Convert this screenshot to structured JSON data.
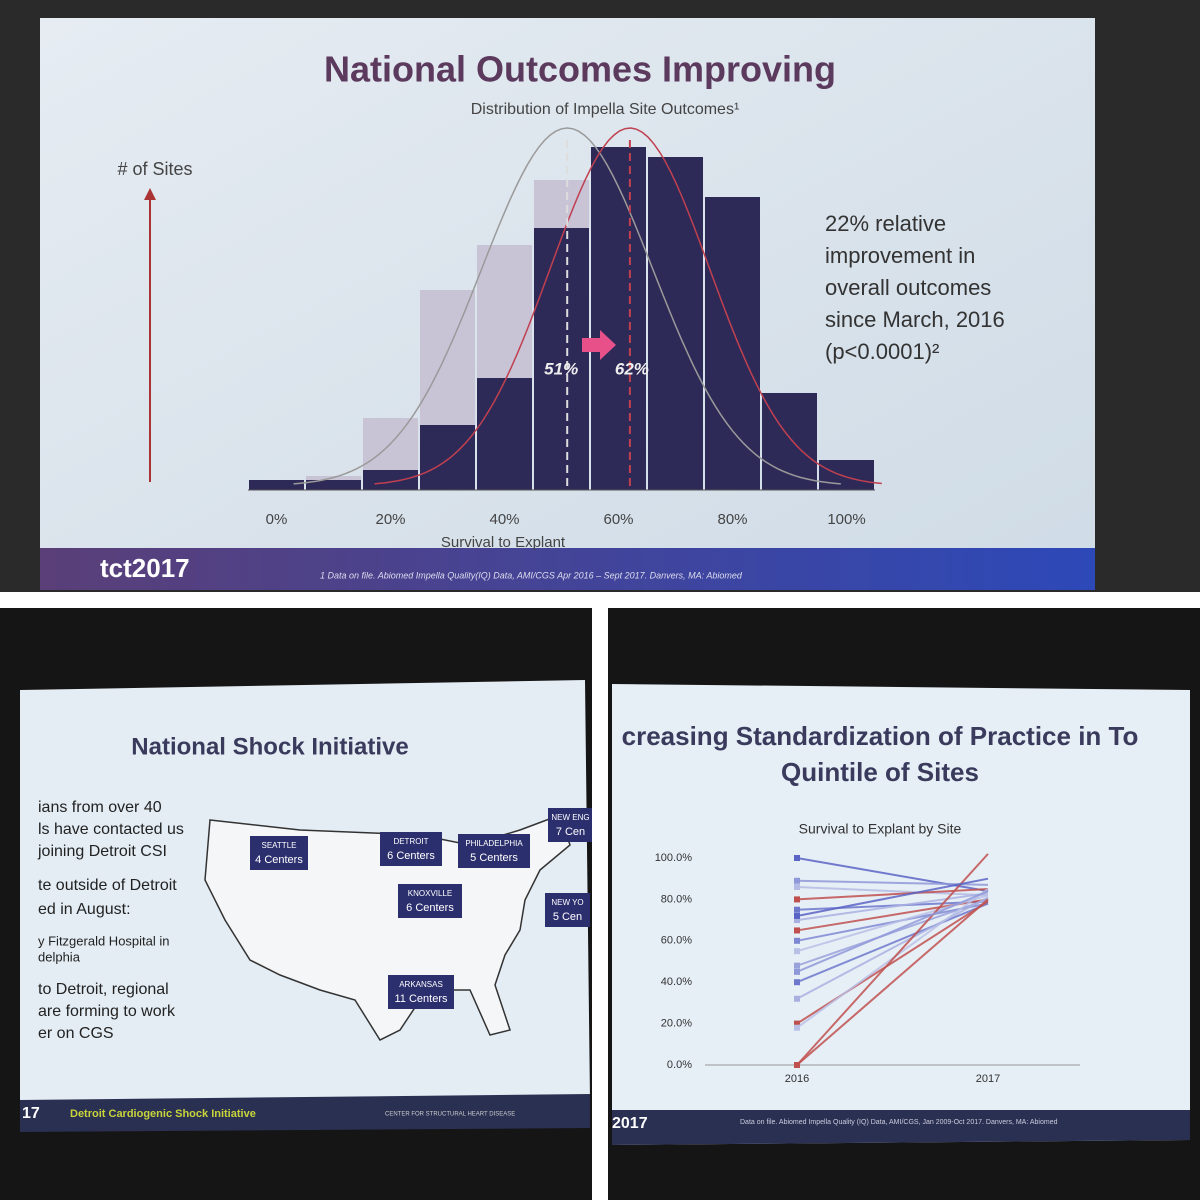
{
  "chart_data": [
    {
      "type": "bar",
      "title": "National Outcomes Improving",
      "subtitle": "Distribution of Impella Site Outcomes¹",
      "y_label": "# of Sites",
      "x_label": "Survival to Explant",
      "x": [
        0,
        10,
        20,
        30,
        40,
        50,
        60,
        70,
        80,
        90,
        100
      ],
      "series": [
        {
          "color": "#c9c3d6",
          "values": [
            10,
            14,
            72,
            200,
            245,
            310,
            0,
            0,
            0,
            0,
            0
          ]
        },
        {
          "color": "#2e2a58",
          "values": [
            10,
            10,
            20,
            65,
            112,
            262,
            343,
            333,
            293,
            97,
            30
          ]
        }
      ],
      "xlim": [
        -5,
        105
      ],
      "xticks": [
        {
          "value": 0,
          "label": "0%"
        },
        {
          "value": 20,
          "label": "20%"
        },
        {
          "value": 40,
          "label": "40%"
        },
        {
          "value": 60,
          "label": "60%"
        },
        {
          "value": 80,
          "label": "80%"
        },
        {
          "value": 100,
          "label": "100%"
        }
      ],
      "ylim": [
        0,
        360
      ],
      "markers": [
        {
          "value": 51,
          "label": "51%"
        },
        {
          "value": 62,
          "label": "62%"
        }
      ],
      "annotation": [
        "22% relative",
        "improvement in",
        "overall outcomes",
        "since March, 2016",
        "(p<0.0001)²"
      ]
    },
    {
      "type": "line",
      "title": [
        "creasing Standardization of Practice in To",
        "Quintile of Sites"
      ],
      "subtitle": "Survival to Explant by Site",
      "x": [
        "2016",
        "2017"
      ],
      "series": [
        {
          "color": "#5a64c4",
          "values": [
            100,
            84
          ]
        },
        {
          "color": "#8f98d8",
          "values": [
            89,
            87
          ]
        },
        {
          "color": "#b4bbe4",
          "values": [
            86,
            82
          ]
        },
        {
          "color": "#c0504d",
          "values": [
            80,
            85
          ]
        },
        {
          "color": "#6d78cc",
          "values": [
            75,
            79
          ]
        },
        {
          "color": "#a9b0e0",
          "values": [
            70,
            83
          ]
        },
        {
          "color": "#c0504d",
          "values": [
            65,
            80
          ]
        },
        {
          "color": "#7e88d2",
          "values": [
            60,
            78
          ]
        },
        {
          "color": "#b9c0e6",
          "values": [
            55,
            82
          ]
        },
        {
          "color": "#9aa2dc",
          "values": [
            48,
            80
          ]
        },
        {
          "color": "#6d78cc",
          "values": [
            40,
            78
          ]
        },
        {
          "color": "#a9b0e0",
          "values": [
            32,
            81
          ]
        },
        {
          "color": "#c0504d",
          "values": [
            20,
            79
          ]
        },
        {
          "color": "#b9c0e6",
          "values": [
            18,
            85
          ]
        },
        {
          "color": "#c0504d",
          "values": [
            0,
            102
          ]
        },
        {
          "color": "#c0504d",
          "values": [
            0,
            80
          ]
        },
        {
          "color": "#5a64c4",
          "values": [
            72,
            90
          ]
        },
        {
          "color": "#8f98d8",
          "values": [
            45,
            84
          ]
        }
      ],
      "ylim": [
        0,
        100
      ],
      "yticks": [
        {
          "value": 0,
          "label": "0.0%"
        },
        {
          "value": 20,
          "label": "20.0%"
        },
        {
          "value": 40,
          "label": "40.0%"
        },
        {
          "value": 60,
          "label": "60.0%"
        },
        {
          "value": 80,
          "label": "80.0%"
        },
        {
          "value": 100,
          "label": "100.0%"
        }
      ]
    }
  ],
  "top_footer": {
    "logo": "tct2017",
    "notes": [
      "1    Data on file. Abiomed Impella Quality(IQ) Data, AMI/CGS Apr 2016 – Sept 2017. Danvers, MA: Abiomed"
    ]
  },
  "map_slide": {
    "title": "National Shock Initiative",
    "bullets": [
      "ians from over 40",
      "ls have contacted us",
      "joining Detroit CSI",
      "te outside of Detroit",
      "ed in August:",
      "y Fitzgerald Hospital in",
      "delphia",
      "to Detroit, regional",
      "are forming to work",
      "er on CGS"
    ],
    "callouts": [
      {
        "city": "SEATTLE",
        "centers": "4 Centers"
      },
      {
        "city": "DETROIT",
        "centers": "6 Centers"
      },
      {
        "city": "PHILADELPHIA",
        "centers": "5 Centers"
      },
      {
        "city": "NEW ENG",
        "centers": "7 Cen"
      },
      {
        "city": "KNOXVILLE",
        "centers": "6 Centers"
      },
      {
        "city": "NEW YO",
        "centers": "5 Cen"
      },
      {
        "city": "ARKANSAS",
        "centers": "11 Centers"
      }
    ],
    "footer": {
      "year": "17",
      "name": "Detroit Cardiogenic Shock Initiative",
      "partner": "CENTER FOR STRUCTURAL HEART DISEASE"
    }
  },
  "line_footer": {
    "year": "2017",
    "notes": [
      "Data on file. Abiomed Impella Quality (IQ) Data, AMI/CGS, Jan 2009-Oct 2017. Danvers, MA: Abiomed"
    ]
  }
}
